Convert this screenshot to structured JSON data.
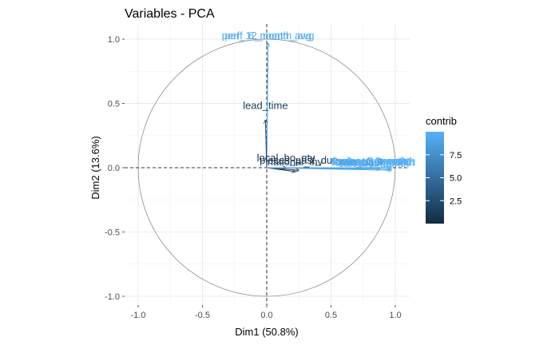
{
  "chart_data": {
    "type": "scatter",
    "title": "Variables - PCA",
    "xlabel": "Dim1 (50.8%)",
    "ylabel": "Dim2 (13.6%)",
    "xlim": [
      -1.1,
      1.1
    ],
    "ylim": [
      -1.05,
      1.05
    ],
    "x_ticks": [
      "-1.0",
      "-0.5",
      "0.0",
      "0.5",
      "1.0"
    ],
    "y_ticks": [
      "-1.0",
      "-0.5",
      "0.0",
      "0.5",
      "1.0"
    ],
    "grid": true,
    "legend": {
      "title": "contrib",
      "position": "right",
      "ticks": [
        "2.5",
        "5.0",
        "7.5"
      ],
      "tick_values": [
        2.5,
        5.0,
        7.5
      ],
      "range": [
        0,
        10
      ],
      "low_color": "#132B43",
      "high_color": "#56B1F7"
    },
    "variables": [
      {
        "label": "perf_6_month_avg",
        "x": 0.01,
        "y": 0.97,
        "contrib": 9.5
      },
      {
        "label": "perf_12_month_avg",
        "x": 0.01,
        "y": 0.97,
        "contrib": 9.6
      },
      {
        "label": "lead_time",
        "x": -0.01,
        "y": 0.37,
        "contrib": 1.5
      },
      {
        "label": "local_bo_qty",
        "x": 0.15,
        "y": 0.0,
        "contrib": 0.4
      },
      {
        "label": "pieces_past_due",
        "x": 0.25,
        "y": -0.02,
        "contrib": 0.9
      },
      {
        "label": "national_inv",
        "x": 0.22,
        "y": -0.03,
        "contrib": 0.8
      },
      {
        "label": "forecast_3_month",
        "x": 0.97,
        "y": 0.0,
        "contrib": 10.0
      },
      {
        "label": "forecast_6_month",
        "x": 0.97,
        "y": -0.01,
        "contrib": 10.0
      },
      {
        "label": "forecast_9_month",
        "x": 0.96,
        "y": -0.01,
        "contrib": 10.0
      },
      {
        "label": "sales_1_month",
        "x": 0.95,
        "y": 0.0,
        "contrib": 9.6
      },
      {
        "label": "sales_3_month",
        "x": 0.96,
        "y": 0.0,
        "contrib": 9.9
      },
      {
        "label": "sales_6_month",
        "x": 0.97,
        "y": -0.01,
        "contrib": 10.0
      },
      {
        "label": "sales_9_month",
        "x": 0.97,
        "y": -0.02,
        "contrib": 10.0
      },
      {
        "label": "min_bank",
        "x": 0.88,
        "y": -0.01,
        "contrib": 8.2
      }
    ]
  }
}
